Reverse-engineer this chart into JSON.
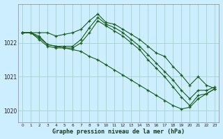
{
  "title": "Graphe pression niveau de la mer (hPa)",
  "bg_color": "#cceeff",
  "grid_color": "#aad4d4",
  "line_color": "#1a5c1a",
  "x_ticks": [
    0,
    1,
    2,
    3,
    4,
    5,
    6,
    7,
    8,
    9,
    10,
    11,
    12,
    13,
    14,
    15,
    16,
    17,
    18,
    19,
    20,
    21,
    22,
    23
  ],
  "y_ticks": [
    1020,
    1021,
    1022
  ],
  "ylim": [
    1019.65,
    1023.15
  ],
  "xlim": [
    -0.5,
    23.5
  ],
  "series": [
    {
      "x": [
        0,
        1,
        2,
        3,
        4,
        5,
        6,
        7,
        8,
        9,
        10,
        11,
        12,
        13,
        14,
        15,
        16,
        17,
        18,
        19,
        20,
        21,
        22,
        23
      ],
      "y": [
        1022.3,
        1022.3,
        1022.3,
        1022.3,
        1022.2,
        1022.25,
        1022.3,
        1022.4,
        1022.65,
        1022.85,
        1022.6,
        1022.55,
        1022.4,
        1022.25,
        1022.1,
        1021.9,
        1021.7,
        1021.6,
        1021.3,
        1021.05,
        1020.75,
        1021.0,
        1020.75,
        1020.65
      ]
    },
    {
      "x": [
        0,
        1,
        2,
        3,
        4,
        5,
        6,
        7,
        8,
        9,
        10,
        11,
        12,
        13,
        14,
        15,
        16,
        17,
        18,
        19,
        20,
        21,
        22,
        23
      ],
      "y": [
        1022.3,
        1022.3,
        1022.15,
        1021.95,
        1021.9,
        1021.9,
        1021.9,
        1022.1,
        1022.45,
        1022.75,
        1022.55,
        1022.45,
        1022.3,
        1022.1,
        1021.9,
        1021.65,
        1021.4,
        1021.15,
        1020.9,
        1020.6,
        1020.35,
        1020.6,
        1020.6,
        1020.7
      ]
    },
    {
      "x": [
        0,
        1,
        2,
        3,
        4,
        5,
        6,
        7,
        8,
        9,
        10,
        11,
        12,
        13,
        14,
        15,
        16,
        17,
        18,
        19,
        20,
        21,
        22,
        23
      ],
      "y": [
        1022.3,
        1022.3,
        1022.1,
        1021.9,
        1021.85,
        1021.85,
        1021.85,
        1022.0,
        1022.3,
        1022.65,
        1022.5,
        1022.35,
        1022.2,
        1022.0,
        1021.8,
        1021.5,
        1021.25,
        1021.0,
        1020.7,
        1020.4,
        1020.15,
        1020.45,
        1020.5,
        1020.65
      ]
    },
    {
      "x": [
        0,
        1,
        2,
        3,
        4,
        5,
        6,
        7,
        8,
        9,
        10,
        11,
        12,
        13,
        14,
        15,
        16,
        17,
        18,
        19,
        20,
        21,
        22,
        23
      ],
      "y": [
        1022.3,
        1022.3,
        1022.2,
        1021.95,
        1021.9,
        1021.85,
        1021.8,
        1021.75,
        1021.6,
        1021.5,
        1021.35,
        1021.2,
        1021.05,
        1020.9,
        1020.75,
        1020.6,
        1020.45,
        1020.3,
        1020.15,
        1020.05,
        1020.1,
        1020.35,
        1020.5,
        1020.65
      ]
    }
  ]
}
